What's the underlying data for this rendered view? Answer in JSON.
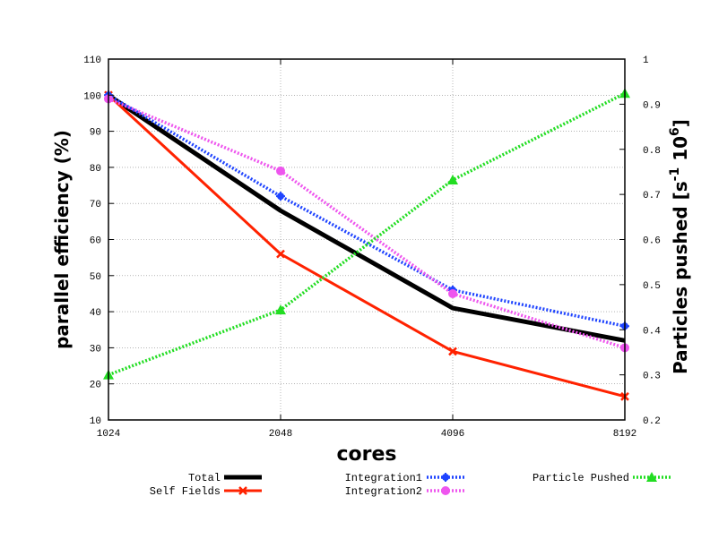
{
  "chart_data": {
    "type": "line",
    "title": "",
    "xlabel": "cores",
    "ylabel": "parallel efficiency (%)",
    "y2label": {
      "base": "Particles pushed  [s",
      "exp1": "-1",
      "mid": " 10",
      "exp2": "6",
      "close": "]"
    },
    "x_scale": "log2",
    "categories": [
      "1024",
      "2048",
      "4096",
      "8192"
    ],
    "x": [
      1024,
      2048,
      4096,
      8192
    ],
    "ylim": [
      10,
      110
    ],
    "y_ticks": [
      10,
      20,
      30,
      40,
      50,
      60,
      70,
      80,
      90,
      100,
      110
    ],
    "y2lim": [
      0.2,
      1.0
    ],
    "y2_ticks": [
      0.2,
      0.3,
      0.4,
      0.5,
      0.6,
      0.7,
      0.8,
      0.9,
      1
    ],
    "y2_tick_labels": [
      "0.2",
      "0.3",
      "0.4",
      "0.5",
      "0.6",
      "0.7",
      "0.8",
      "0.9",
      "1"
    ],
    "grid": true,
    "legend_position": "bottom",
    "series": [
      {
        "name": "Total",
        "axis": "left",
        "color": "#000000",
        "style": "solid",
        "marker": "none",
        "values": [
          100,
          68,
          41,
          32
        ]
      },
      {
        "name": "Self Fields",
        "axis": "left",
        "color": "#ff2200",
        "style": "solid",
        "marker": "x",
        "values": [
          100,
          56,
          29,
          16.5
        ]
      },
      {
        "name": "Integration1",
        "axis": "left",
        "color": "#1f44ff",
        "style": "dotted",
        "marker": "star",
        "values": [
          100,
          72,
          46,
          36
        ]
      },
      {
        "name": "Integration2",
        "axis": "left",
        "color": "#ee55ee",
        "style": "dotted",
        "marker": "circle",
        "values": [
          99,
          79,
          45,
          30
        ]
      },
      {
        "name": "Particle Pushed",
        "axis": "right",
        "color": "#22dd22",
        "style": "dotted",
        "marker": "triangle",
        "values": [
          0.3,
          0.444,
          0.732,
          0.924
        ]
      }
    ]
  }
}
